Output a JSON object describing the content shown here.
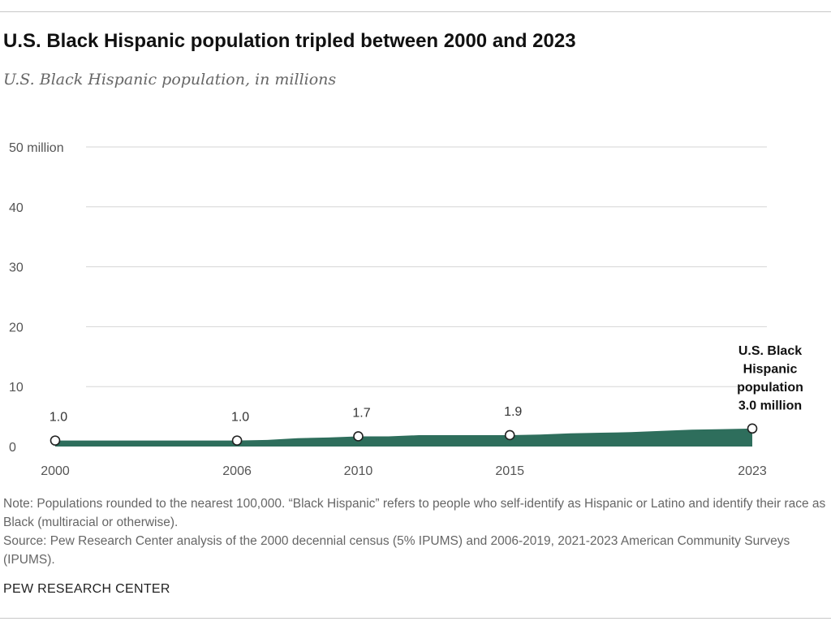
{
  "header": {
    "title": "U.S. Black Hispanic population tripled between 2000 and 2023",
    "subtitle": "U.S. Black Hispanic population, in millions"
  },
  "chart_data": {
    "type": "area",
    "title": "U.S. Black Hispanic population tripled between 2000 and 2023",
    "subtitle": "U.S. Black Hispanic population, in millions",
    "xlabel": "",
    "ylabel": "",
    "unit": "millions",
    "ylim": [
      0,
      50
    ],
    "grid": true,
    "y_ticks": [
      {
        "value": 0,
        "label": "0"
      },
      {
        "value": 10,
        "label": "10"
      },
      {
        "value": 20,
        "label": "20"
      },
      {
        "value": 30,
        "label": "30"
      },
      {
        "value": 40,
        "label": "40"
      },
      {
        "value": 50,
        "label": "50 million"
      }
    ],
    "x_ticks": [
      {
        "value": 2000,
        "label": "2000"
      },
      {
        "value": 2006,
        "label": "2006"
      },
      {
        "value": 2010,
        "label": "2010"
      },
      {
        "value": 2015,
        "label": "2015"
      },
      {
        "value": 2023,
        "label": "2023"
      }
    ],
    "series": [
      {
        "name": "U.S. Black Hispanic population",
        "color": "#2e6e5c",
        "points": [
          {
            "x": 2000,
            "y": 1.0
          },
          {
            "x": 2006,
            "y": 1.0
          },
          {
            "x": 2007,
            "y": 1.1
          },
          {
            "x": 2008,
            "y": 1.4
          },
          {
            "x": 2009,
            "y": 1.5
          },
          {
            "x": 2010,
            "y": 1.7
          },
          {
            "x": 2011,
            "y": 1.7
          },
          {
            "x": 2012,
            "y": 1.9
          },
          {
            "x": 2013,
            "y": 1.9
          },
          {
            "x": 2014,
            "y": 1.9
          },
          {
            "x": 2015,
            "y": 1.9
          },
          {
            "x": 2016,
            "y": 2.0
          },
          {
            "x": 2017,
            "y": 2.2
          },
          {
            "x": 2018,
            "y": 2.3
          },
          {
            "x": 2019,
            "y": 2.4
          },
          {
            "x": 2021,
            "y": 2.8
          },
          {
            "x": 2022,
            "y": 2.9
          },
          {
            "x": 2023,
            "y": 3.0
          }
        ]
      }
    ],
    "markers": [
      {
        "x": 2000,
        "y": 1.0,
        "label": "1.0"
      },
      {
        "x": 2006,
        "y": 1.0,
        "label": "1.0"
      },
      {
        "x": 2010,
        "y": 1.7,
        "label": "1.7"
      },
      {
        "x": 2015,
        "y": 1.9,
        "label": "1.9"
      },
      {
        "x": 2023,
        "y": 3.0,
        "label": ""
      }
    ],
    "annotation": {
      "x": 2023,
      "lines": [
        "U.S. Black",
        "Hispanic",
        "population",
        "3.0 million"
      ]
    }
  },
  "footer": {
    "note": "Note: Populations rounded to the nearest 100,000. “Black Hispanic” refers to people who self-identify as Hispanic or Latino and identify their race as Black (multiracial or otherwise).",
    "source": "Source: Pew Research Center analysis of the 2000 decennial census (5% IPUMS) and 2006-2019, 2021-2023 American Community Surveys (IPUMS).",
    "brand": "PEW RESEARCH CENTER"
  },
  "colors": {
    "area": "#2e6e5c",
    "grid": "#d6d6d6",
    "axis_text": "#555555",
    "label_text": "#333333"
  }
}
